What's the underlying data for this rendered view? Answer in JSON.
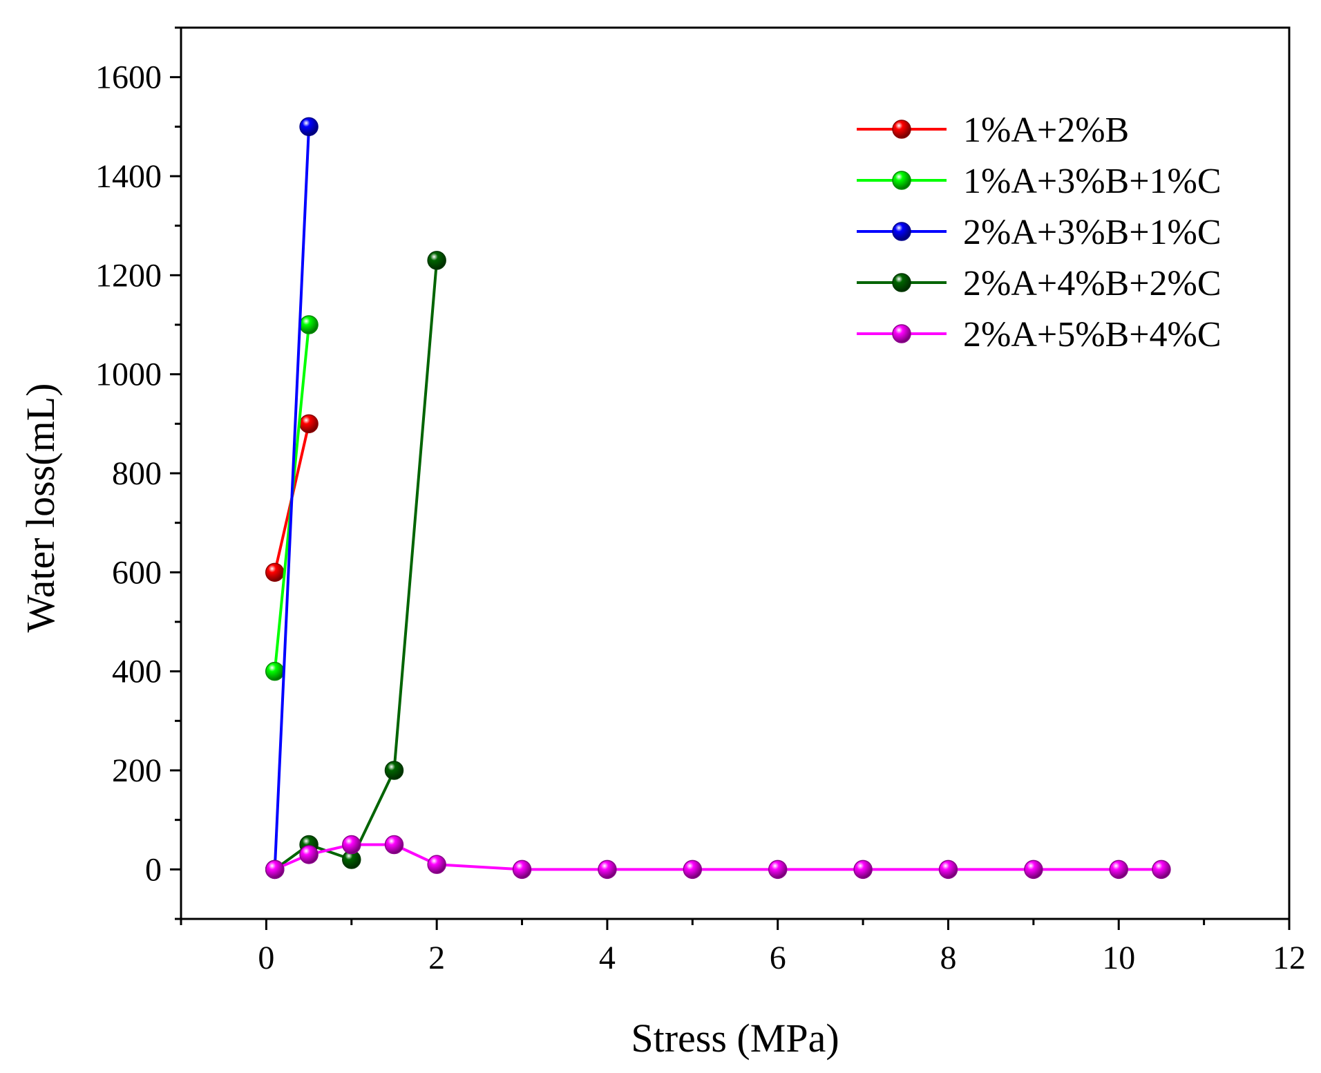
{
  "chart_data": {
    "type": "line",
    "title": "",
    "xlabel": "Stress (MPa)",
    "ylabel": "Water loss(mL)",
    "xlim": [
      -1,
      12
    ],
    "ylim": [
      -100,
      1700
    ],
    "xticks": [
      0,
      2,
      4,
      6,
      8,
      10,
      12
    ],
    "xtick_labels": [
      "0",
      "2",
      "4",
      "6",
      "8",
      "10",
      "12"
    ],
    "yticks": [
      0,
      200,
      400,
      600,
      800,
      1000,
      1200,
      1400,
      1600
    ],
    "ytick_labels": [
      "0",
      "200",
      "400",
      "600",
      "800",
      "1000",
      "1200",
      "1400",
      "1600"
    ],
    "grid": false,
    "legend_position": "top-right",
    "series": [
      {
        "name": "1%A+2%B",
        "color": "#ff0000",
        "x": [
          0.1,
          0.5
        ],
        "y": [
          600,
          900
        ]
      },
      {
        "name": "1%A+3%B+1%C",
        "color": "#00ff00",
        "x": [
          0.1,
          0.5
        ],
        "y": [
          400,
          1100
        ]
      },
      {
        "name": "2%A+3%B+1%C",
        "color": "#0000ff",
        "x": [
          0.1,
          0.5
        ],
        "y": [
          0,
          1500
        ]
      },
      {
        "name": "2%A+4%B+2%C",
        "color": "#006400",
        "x": [
          0.1,
          0.5,
          1.0,
          1.5,
          2.0
        ],
        "y": [
          0,
          50,
          20,
          200,
          1230
        ]
      },
      {
        "name": "2%A+5%B+4%C",
        "color": "#ff00ff",
        "x": [
          0.1,
          0.5,
          1.0,
          1.5,
          2.0,
          3,
          4,
          5,
          6,
          7,
          8,
          9,
          10,
          10.5
        ],
        "y": [
          0,
          30,
          50,
          50,
          10,
          0,
          0,
          0,
          0,
          0,
          0,
          0,
          0,
          0
        ]
      }
    ]
  }
}
